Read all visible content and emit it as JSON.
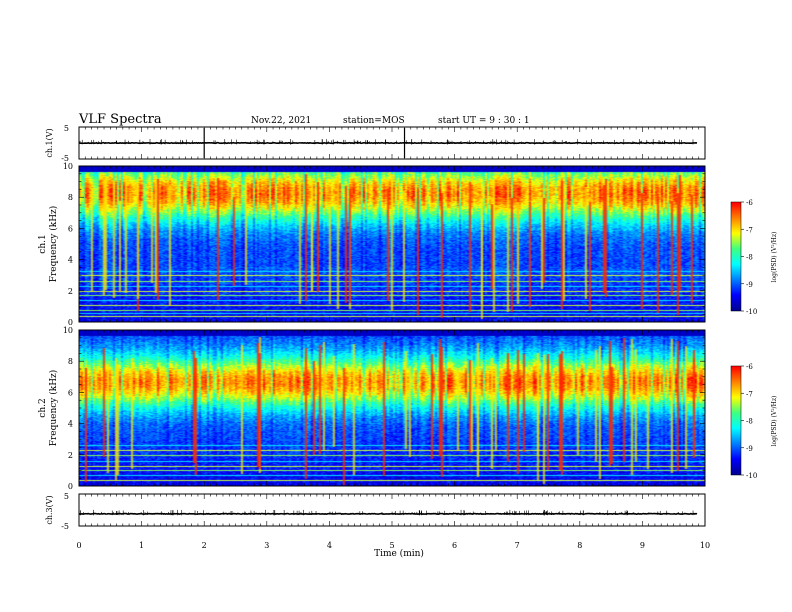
{
  "header": {
    "title": "VLF Spectra",
    "date": "Nov.22, 2021",
    "station": "station=MOS",
    "start": "start  UT =  9 : 30 : 1"
  },
  "colorbar_label": "log(PSD) (V²/Hz)",
  "chart_data": [
    {
      "type": "line",
      "name": "ch.1 waveform",
      "ylabel": "ch.1(V)",
      "ylim": [
        -5,
        5
      ],
      "yticks": [
        "5",
        "-5"
      ],
      "level_v": 0,
      "spikes_min": [
        2.0,
        5.2
      ]
    },
    {
      "type": "heatmap",
      "ylabel": "ch.1\nFrequency (kHz)",
      "ylabel_lines": [
        "ch.1",
        "Frequency (kHz)"
      ],
      "xlim": [
        0,
        9.85
      ],
      "ylim": [
        0,
        10
      ],
      "yticks": [
        "0",
        "2",
        "4",
        "6",
        "8",
        "10"
      ],
      "peak_band_khz": [
        7.0,
        9.5
      ],
      "hum_lines_khz": [
        0.4,
        0.6,
        0.8,
        1.1,
        1.4,
        1.7,
        2.0,
        2.3,
        2.6,
        3.0,
        3.3
      ],
      "colorbar": {
        "min": -10,
        "max": -6,
        "ticks": [
          "-6",
          "-7",
          "-8",
          "-9",
          "-10"
        ]
      }
    },
    {
      "type": "heatmap",
      "ylabel": "ch.2\nFrequency (kHz)",
      "ylabel_lines": [
        "ch.2",
        "Frequency (kHz)"
      ],
      "xlim": [
        0,
        9.85
      ],
      "ylim": [
        0,
        10
      ],
      "yticks": [
        "0",
        "2",
        "4",
        "6",
        "8",
        "10"
      ],
      "peak_band_khz": [
        5.5,
        7.8
      ],
      "hum_lines_khz": [
        0.4,
        0.7,
        1.0,
        1.3,
        1.6,
        2.0,
        2.3,
        2.6
      ],
      "colorbar": {
        "min": -10,
        "max": -6,
        "ticks": [
          "-6",
          "-7",
          "-8",
          "-9",
          "-10"
        ]
      }
    },
    {
      "type": "line",
      "name": "ch.3 waveform",
      "ylabel": "ch.3(V)",
      "ylim": [
        -5,
        5
      ],
      "yticks": [
        "5",
        "-5"
      ],
      "level_v": -1.2,
      "spikes_min": []
    }
  ],
  "x_axis": {
    "label": "Time (min)",
    "range": [
      0,
      10
    ],
    "ticks": [
      "0",
      "1",
      "2",
      "3",
      "4",
      "5",
      "6",
      "7",
      "8",
      "9",
      "10"
    ]
  },
  "colors": {
    "colormap": [
      "#00008f",
      "#0000ff",
      "#0080ff",
      "#00ffff",
      "#40ff80",
      "#ffff00",
      "#ff8000",
      "#ff0000",
      "#ffffff"
    ]
  }
}
